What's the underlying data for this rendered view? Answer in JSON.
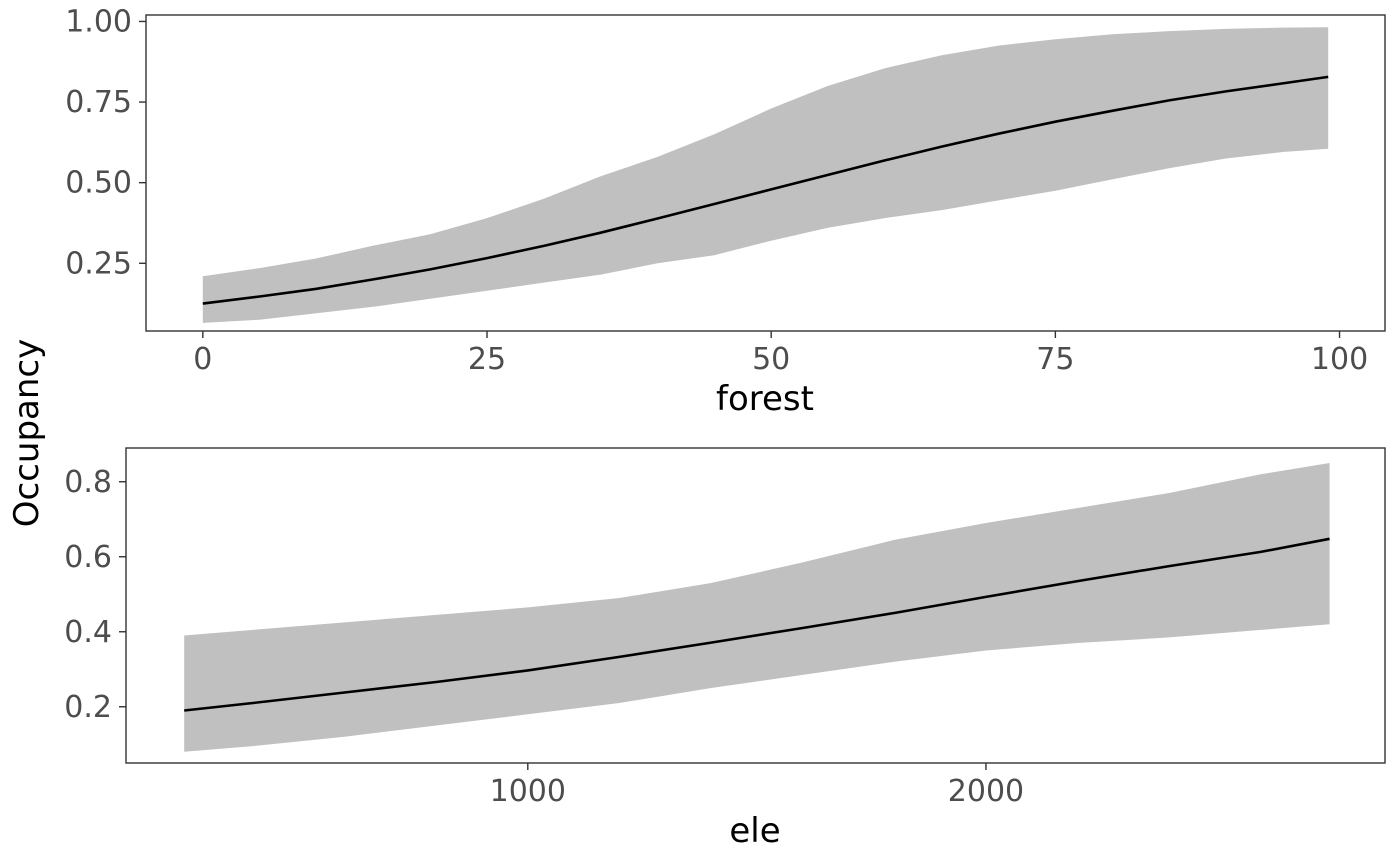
{
  "ylabel": "Occupancy",
  "colors": {
    "band": "#c0c0c0",
    "line": "#000000",
    "panel_border": "#333333",
    "tick_text": "#4d4d4d"
  },
  "chart_data": [
    {
      "type": "line",
      "xlabel": "forest",
      "ylabel": "Occupancy",
      "xlim": [
        -5,
        104
      ],
      "ylim": [
        0.04,
        1.02
      ],
      "x_ticks": [
        0,
        25,
        50,
        75,
        100
      ],
      "x_tick_labels": [
        "0",
        "25",
        "50",
        "75",
        "100"
      ],
      "y_ticks": [
        0.25,
        0.5,
        0.75,
        1.0
      ],
      "y_tick_labels": [
        "0.25",
        "0.50",
        "0.75",
        "1.00"
      ],
      "grid": false,
      "x": [
        0,
        5,
        10,
        15,
        20,
        25,
        30,
        35,
        40,
        45,
        50,
        55,
        60,
        65,
        70,
        75,
        80,
        85,
        90,
        95,
        99
      ],
      "series": [
        {
          "values": [
            0.125,
            0.147,
            0.171,
            0.2,
            0.231,
            0.266,
            0.304,
            0.345,
            0.389,
            0.434,
            0.479,
            0.524,
            0.569,
            0.612,
            0.652,
            0.689,
            0.723,
            0.755,
            0.783,
            0.808,
            0.828
          ],
          "lower": [
            0.065,
            0.075,
            0.095,
            0.115,
            0.14,
            0.165,
            0.19,
            0.215,
            0.25,
            0.275,
            0.32,
            0.36,
            0.39,
            0.415,
            0.445,
            0.475,
            0.51,
            0.545,
            0.575,
            0.595,
            0.605
          ],
          "upper": [
            0.21,
            0.235,
            0.265,
            0.305,
            0.34,
            0.39,
            0.45,
            0.52,
            0.58,
            0.65,
            0.73,
            0.8,
            0.855,
            0.895,
            0.925,
            0.945,
            0.96,
            0.97,
            0.977,
            0.981,
            0.982
          ]
        }
      ]
    },
    {
      "type": "line",
      "xlabel": "ele",
      "ylabel": "Occupancy",
      "xlim": [
        123,
        2871
      ],
      "ylim": [
        0.05,
        0.89
      ],
      "x_ticks": [
        1000,
        2000
      ],
      "x_tick_labels": [
        "1000",
        "2000"
      ],
      "y_ticks": [
        0.2,
        0.4,
        0.6,
        0.8
      ],
      "y_tick_labels": [
        "0.2",
        "0.4",
        "0.6",
        "0.8"
      ],
      "grid": false,
      "x": [
        250,
        400,
        600,
        800,
        1000,
        1200,
        1400,
        1600,
        1800,
        2000,
        2200,
        2400,
        2600,
        2750
      ],
      "series": [
        {
          "values": [
            0.19,
            0.21,
            0.238,
            0.266,
            0.297,
            0.333,
            0.371,
            0.41,
            0.45,
            0.493,
            0.535,
            0.575,
            0.613,
            0.648
          ],
          "lower": [
            0.08,
            0.095,
            0.12,
            0.15,
            0.18,
            0.21,
            0.25,
            0.285,
            0.32,
            0.35,
            0.37,
            0.385,
            0.405,
            0.42
          ],
          "upper": [
            0.39,
            0.405,
            0.425,
            0.445,
            0.465,
            0.49,
            0.53,
            0.585,
            0.645,
            0.69,
            0.73,
            0.77,
            0.82,
            0.85
          ]
        }
      ]
    }
  ]
}
